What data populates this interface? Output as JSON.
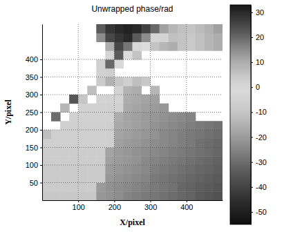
{
  "chart_data": {
    "type": "heatmap",
    "title": "Unwrapped phase/rad",
    "xlabel": "X/pixel",
    "ylabel": "Y/pixel",
    "x": [
      12.5,
      37.5,
      62.5,
      87.5,
      112.5,
      137.5,
      162.5,
      187.5,
      212.5,
      237.5,
      262.5,
      287.5,
      312.5,
      337.5,
      362.5,
      387.5,
      412.5,
      437.5,
      462.5,
      487.5
    ],
    "y": [
      12.5,
      37.5,
      62.5,
      87.5,
      112.5,
      137.5,
      162.5,
      187.5,
      212.5,
      237.5,
      262.5,
      287.5,
      312.5,
      337.5,
      362.5,
      387.5,
      412.5,
      437.5,
      462.5,
      487.5
    ],
    "values": [
      [
        -9,
        -9,
        -9,
        -9,
        -9,
        -9,
        -21,
        -22,
        -23,
        -25,
        -26,
        -27,
        -28,
        -29,
        -30,
        -31,
        -32,
        -34,
        -35,
        -36
      ],
      [
        -8,
        -8,
        -8,
        -8,
        -8,
        -8,
        -20,
        -22,
        -23,
        -24,
        -25,
        -26,
        -27,
        -28,
        -29,
        -31,
        -32,
        -33,
        -34,
        -35
      ],
      [
        -8,
        -8,
        -8,
        -8,
        -8,
        -8,
        -8,
        -21,
        -22,
        -23,
        -24,
        -25,
        -27,
        -28,
        -29,
        -30,
        -31,
        -32,
        -33,
        -34
      ],
      [
        -8,
        -8,
        -8,
        -8,
        -8,
        -8,
        -8,
        -20,
        -21,
        -22,
        -23,
        -24,
        -26,
        -27,
        -28,
        -29,
        -30,
        -31,
        -32,
        -33
      ],
      [
        -7,
        -7,
        -7,
        -7,
        -7,
        -7,
        -7,
        -19,
        -20,
        -21,
        -22,
        -24,
        -25,
        -26,
        -27,
        -28,
        -29,
        -30,
        -31,
        -32
      ],
      [
        -7,
        -7,
        -7,
        -7,
        -7,
        -7,
        -7,
        -18,
        -20,
        -21,
        -22,
        -23,
        -24,
        -25,
        -26,
        -27,
        -28,
        -29,
        -30,
        -31
      ],
      [
        -6,
        -6,
        -6,
        -6,
        -6,
        -6,
        -6,
        -6,
        -19,
        -20,
        -21,
        -22,
        -23,
        -24,
        -25,
        -26,
        -27,
        -29,
        -30,
        -31
      ],
      [
        -12,
        -6,
        -6,
        -6,
        -6,
        -6,
        -6,
        -6,
        -18,
        -19,
        -20,
        -21,
        -22,
        -24,
        -25,
        -26,
        -27,
        -28,
        -29,
        -30
      ],
      [
        null,
        null,
        -6,
        -6,
        -6,
        -6,
        -6,
        -6,
        -17,
        -18,
        -19,
        -20,
        -22,
        -23,
        -24,
        -25,
        -26,
        -27,
        -28,
        -29
      ],
      [
        null,
        -30,
        null,
        -5,
        -5,
        -5,
        -5,
        -5,
        -16,
        -18,
        -19,
        -20,
        -21,
        -22,
        -23,
        -24,
        -25,
        null,
        null,
        null
      ],
      [
        null,
        null,
        -14,
        null,
        -5,
        -5,
        -5,
        -5,
        -5,
        -17,
        -18,
        -19,
        -20,
        -21,
        null,
        null,
        null,
        null,
        null,
        null
      ],
      [
        null,
        null,
        null,
        -35,
        -10,
        null,
        -4,
        -4,
        -4,
        -16,
        -17,
        -18,
        -19,
        null,
        null,
        null,
        null,
        null,
        null,
        null
      ],
      [
        null,
        null,
        null,
        null,
        null,
        -12,
        null,
        null,
        -4,
        -15,
        -16,
        null,
        -14,
        null,
        null,
        null,
        null,
        null,
        null,
        null
      ],
      [
        null,
        null,
        null,
        null,
        null,
        null,
        -8,
        -15,
        -10,
        -6,
        -12,
        -9,
        null,
        null,
        null,
        null,
        null,
        null,
        null,
        null
      ],
      [
        null,
        null,
        null,
        null,
        null,
        null,
        -5,
        -6,
        null,
        null,
        null,
        null,
        null,
        null,
        null,
        null,
        null,
        null,
        null,
        null
      ],
      [
        null,
        null,
        null,
        null,
        null,
        null,
        -5,
        20,
        -2,
        null,
        null,
        null,
        null,
        null,
        null,
        null,
        null,
        null,
        null,
        null
      ],
      [
        null,
        null,
        null,
        null,
        null,
        null,
        null,
        -3,
        22,
        0,
        5,
        null,
        null,
        null,
        null,
        null,
        null,
        null,
        null,
        null
      ],
      [
        null,
        null,
        null,
        null,
        null,
        null,
        null,
        10,
        25,
        18,
        -2,
        0,
        5,
        8,
        10,
        5,
        4,
        6,
        8,
        10
      ],
      [
        null,
        null,
        null,
        null,
        null,
        null,
        15,
        25,
        28,
        30,
        22,
        15,
        -3,
        2,
        6,
        5,
        4,
        6,
        8,
        10
      ],
      [
        null,
        null,
        null,
        null,
        null,
        null,
        22,
        28,
        30,
        31,
        30,
        26,
        20,
        12,
        8,
        6,
        5,
        7,
        9,
        12
      ]
    ],
    "xlim": [
      0,
      500
    ],
    "ylim": [
      0,
      500
    ],
    "xticks": [
      100,
      200,
      300,
      400
    ],
    "yticks": [
      50,
      100,
      150,
      200,
      250,
      300,
      350,
      400
    ],
    "grid": true,
    "clim": [
      -55,
      33
    ],
    "cticks": [
      -50,
      -40,
      -30,
      -20,
      -10,
      0,
      10,
      20,
      30
    ]
  }
}
